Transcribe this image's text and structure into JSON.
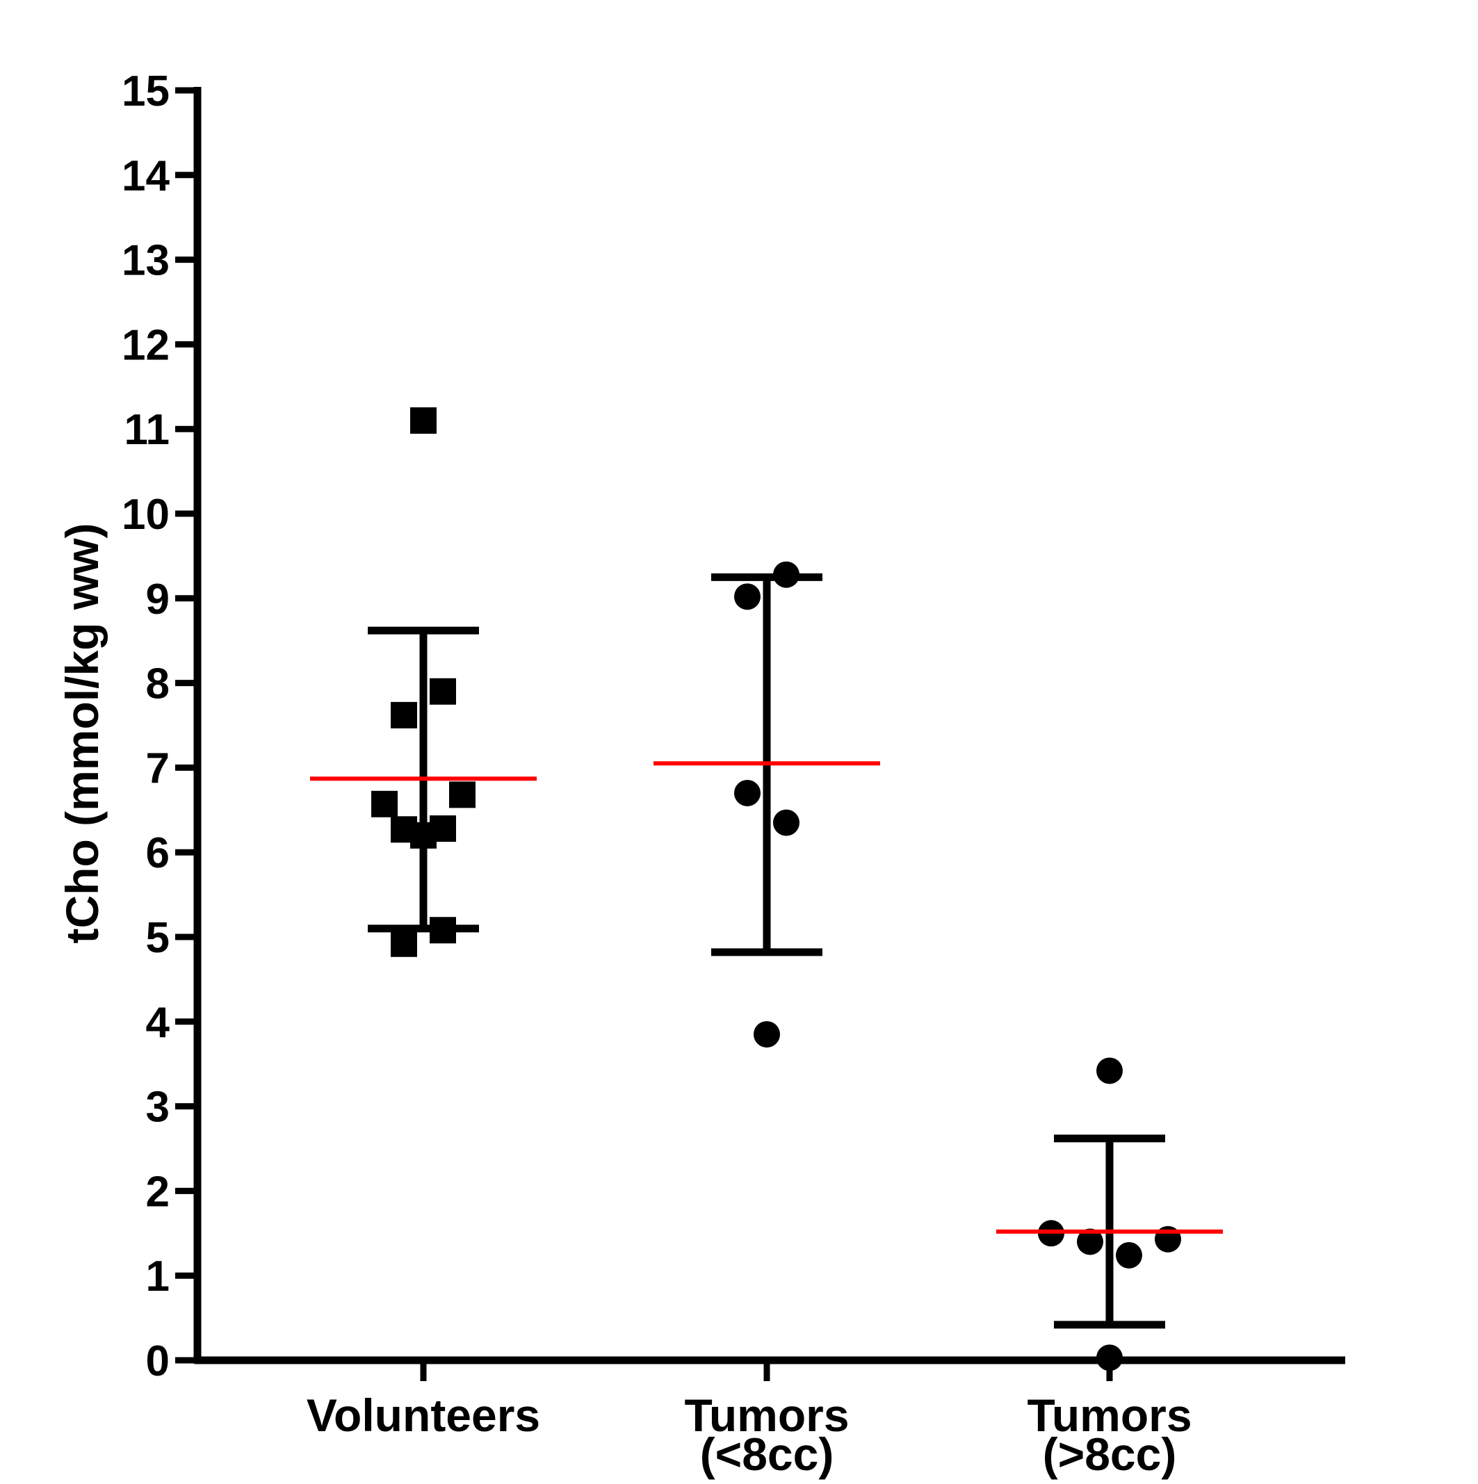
{
  "chart_data": {
    "type": "scatter",
    "title": "",
    "xlabel": "",
    "ylabel": "tCho (mmol/kg ww)",
    "ylim": [
      0,
      15
    ],
    "yticks": [
      "0",
      "1",
      "2",
      "3",
      "4",
      "5",
      "6",
      "7",
      "8",
      "9",
      "10",
      "11",
      "12",
      "13",
      "14",
      "15"
    ],
    "grid": false,
    "legend": "none",
    "categories": [
      {
        "lines": [
          "Volunteers"
        ]
      },
      {
        "lines": [
          "Tumors",
          "(<8cc)"
        ]
      },
      {
        "lines": [
          "Tumors",
          "(>8cc)"
        ]
      }
    ],
    "series": [
      {
        "name": "Volunteers",
        "marker": "square",
        "points": [
          {
            "offset": 0,
            "y": 11.1
          },
          {
            "offset": 1,
            "y": 7.9
          },
          {
            "offset": -1,
            "y": 7.62
          },
          {
            "offset": 2,
            "y": 6.68
          },
          {
            "offset": -2,
            "y": 6.57
          },
          {
            "offset": -1,
            "y": 6.27
          },
          {
            "offset": 1,
            "y": 6.28
          },
          {
            "offset": 0,
            "y": 6.2
          },
          {
            "offset": 1,
            "y": 5.08
          },
          {
            "offset": -1,
            "y": 4.92
          }
        ],
        "mean": 6.87,
        "sd_upper": 8.62,
        "sd_lower": 5.1
      },
      {
        "name": "Tumors (<8cc)",
        "marker": "circle",
        "points": [
          {
            "offset": 1,
            "y": 9.28
          },
          {
            "offset": -1,
            "y": 9.02
          },
          {
            "offset": -1,
            "y": 6.7
          },
          {
            "offset": 1,
            "y": 6.35
          },
          {
            "offset": 0,
            "y": 3.85
          }
        ],
        "mean": 7.05,
        "sd_upper": 9.25,
        "sd_lower": 4.82
      },
      {
        "name": "Tumors (>8cc)",
        "marker": "circle",
        "points": [
          {
            "offset": 0,
            "y": 3.42
          },
          {
            "offset": -3,
            "y": 1.5
          },
          {
            "offset": -1,
            "y": 1.4
          },
          {
            "offset": 1,
            "y": 1.24
          },
          {
            "offset": 3,
            "y": 1.43
          },
          {
            "offset": 0,
            "y": 0.03
          }
        ],
        "mean": 1.52,
        "sd_upper": 2.62,
        "sd_lower": 0.42
      }
    ],
    "colors": {
      "points": "#000000",
      "error_bars": "#000000",
      "mean_line": "#ff0000",
      "axes": "#000000"
    }
  }
}
